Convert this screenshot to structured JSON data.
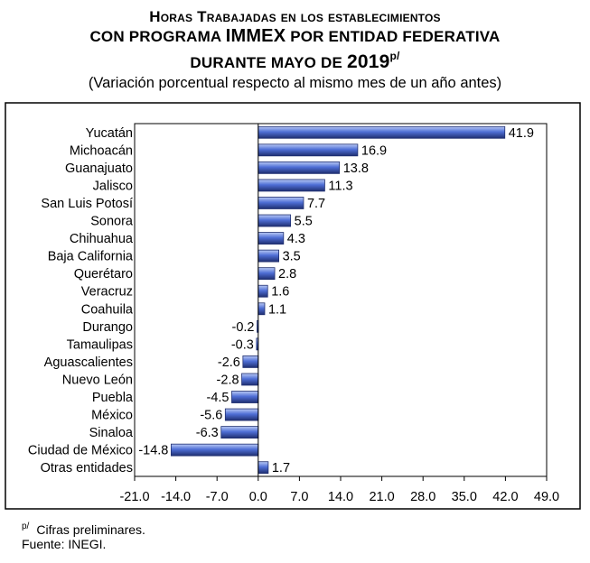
{
  "header": {
    "title_line1": "Horas Trabajadas en los establecimientos",
    "title_line2_pre": "con programa ",
    "title_line2_immex": "IMMEX",
    "title_line2_post": " por entidad federativa",
    "title_line3_pre": "durante mayo de ",
    "title_line3_year": "2019",
    "title_line3_sup": "p/",
    "subtitle": "(Variación porcentual respecto al mismo mes de un año antes)"
  },
  "footer": {
    "note_marker": "p/",
    "note_text": "Cifras preliminares.",
    "source": "Fuente: INEGI."
  },
  "chart_data": {
    "type": "bar",
    "orientation": "horizontal",
    "categories": [
      "Yucatán",
      "Michoacán",
      "Guanajuato",
      "Jalisco",
      "San Luis Potosí",
      "Sonora",
      "Chihuahua",
      "Baja California",
      "Querétaro",
      "Veracruz",
      "Coahuila",
      "Durango",
      "Tamaulipas",
      "Aguascalientes",
      "Nuevo León",
      "Puebla",
      "México",
      "Sinaloa",
      "Ciudad de México",
      "Otras entidades"
    ],
    "values": [
      41.9,
      16.9,
      13.8,
      11.3,
      7.7,
      5.5,
      4.3,
      3.5,
      2.8,
      1.6,
      1.1,
      -0.2,
      -0.3,
      -2.6,
      -2.8,
      -4.5,
      -5.6,
      -6.3,
      -14.8,
      1.7
    ],
    "value_labels": [
      "41.9",
      "16.9",
      "13.8",
      "11.3",
      "7.7",
      "5.5",
      "4.3",
      "3.5",
      "2.8",
      "1.6",
      "1.1",
      "-0.2",
      "-0.3",
      "-2.6",
      "-2.8",
      "-4.5",
      "-5.6",
      "-6.3",
      "-14.8",
      "1.7"
    ],
    "xlim": [
      -21.0,
      49.0
    ],
    "xticks": [
      -21.0,
      -14.0,
      -7.0,
      0.0,
      7.0,
      14.0,
      21.0,
      28.0,
      35.0,
      42.0,
      49.0
    ],
    "xtick_labels": [
      "-21.0",
      "-14.0",
      "-7.0",
      "0.0",
      "7.0",
      "14.0",
      "21.0",
      "28.0",
      "35.0",
      "42.0",
      "49.0"
    ],
    "grid": false,
    "legend": "none",
    "bar_color": "#4f6fd6",
    "bar_highlight": "#b9c9f5",
    "bar_edge": "#1f2f70"
  }
}
